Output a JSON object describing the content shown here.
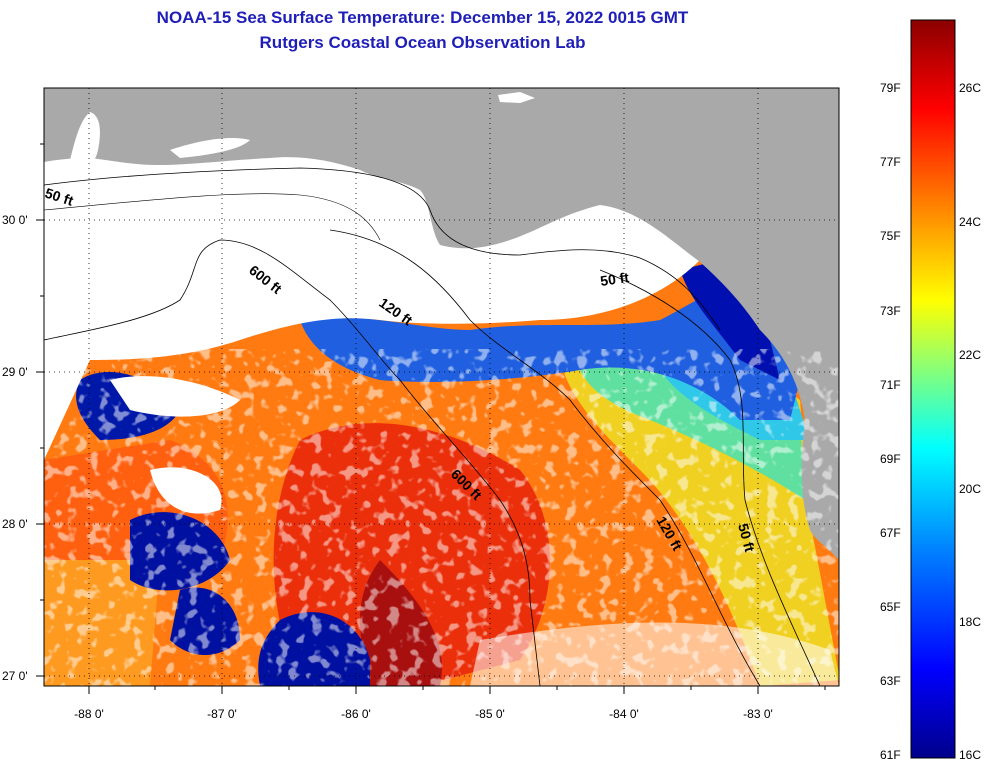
{
  "title": {
    "line1": "NOAA-15 Sea Surface Temperature:  December 15, 2022 0015 GMT",
    "line2": "Rutgers Coastal Ocean Observation Lab"
  },
  "axes": {
    "lon_ticks": [
      "-88 0'",
      "-87 0'",
      "-86 0'",
      "-85 0'",
      "-84 0'",
      "-83 0'"
    ],
    "lat_ticks": [
      "30 0'",
      "29 0'",
      "28 0'",
      "27 0'"
    ]
  },
  "depth_contours": [
    "50 ft",
    "600 ft",
    "120 ft",
    "50 ft",
    "600 ft",
    "120 ft",
    "50 ft"
  ],
  "colorbar": {
    "fahrenheit": [
      "79F",
      "77F",
      "75F",
      "73F",
      "71F",
      "69F",
      "67F",
      "65F",
      "63F",
      "61F"
    ],
    "celsius": [
      "26C",
      "24C",
      "22C",
      "20C",
      "18C",
      "16C"
    ]
  },
  "colors": {
    "title": "#1f1fb8",
    "land": "#a9a9a9",
    "cloud": "#ffffff",
    "ramp": [
      "#00008b",
      "#0000ff",
      "#0080ff",
      "#00ffff",
      "#80ff80",
      "#ffff00",
      "#ff8000",
      "#ff0000",
      "#8b0000"
    ]
  }
}
